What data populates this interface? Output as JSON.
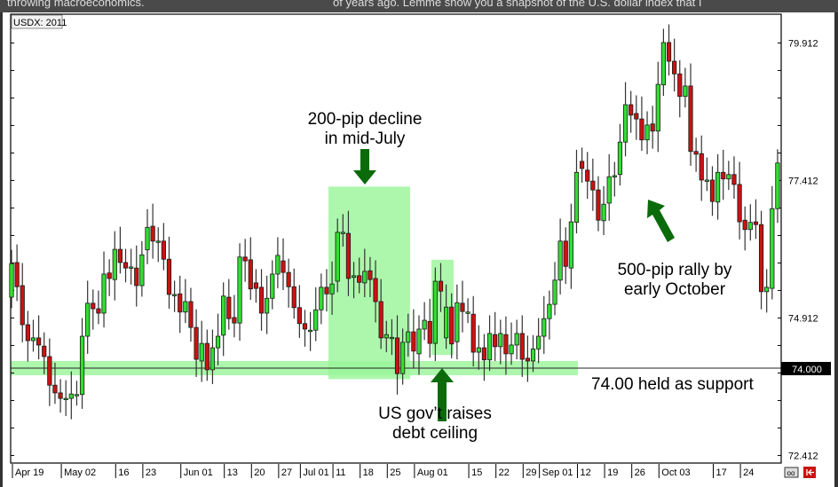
{
  "background_text": {
    "left": "throwing macroeconomics.",
    "right": "of years ago. Lemme show you a snapshot of the U.S. dollar index that I"
  },
  "chart_data": {
    "type": "candlestick",
    "title": "USDX: 2011",
    "symbol_label": "USDX: 2011",
    "y_ticks": [
      "79.912",
      "77.412",
      "74.912",
      "72.412"
    ],
    "y_tick_values": [
      79.912,
      77.412,
      74.912,
      72.412
    ],
    "ylim": [
      72.2,
      80.5
    ],
    "x_ticks": [
      "Apr 19",
      "May 02",
      "16",
      "23",
      "Jun 01",
      "13",
      "20",
      "27",
      "Jul 01",
      "11",
      "18",
      "25",
      "Aug 01",
      "15",
      "22",
      "29",
      "Sep 01",
      "12",
      "19",
      "26",
      "Oct 03",
      "17",
      "24"
    ],
    "x_tick_candle_index": [
      0,
      9,
      19,
      24,
      31,
      39,
      44,
      49,
      53,
      59,
      64,
      69,
      74,
      84,
      89,
      94,
      97,
      104,
      109,
      114,
      119,
      129,
      134
    ],
    "price_label": "74.000",
    "price_line": 74.0,
    "colors": {
      "up": "#33dd33",
      "down": "#cc1111",
      "highlight": "#99f599",
      "arrow": "#0b6b0b",
      "outline": "#1a1a1a"
    },
    "candles_open_close": [
      [
        75.29,
        75.9
      ],
      [
        75.92,
        75.48
      ],
      [
        75.5,
        74.79
      ],
      [
        74.79,
        74.5
      ],
      [
        74.5,
        74.55
      ],
      [
        74.55,
        74.42
      ],
      [
        74.4,
        74.21
      ],
      [
        74.21,
        73.69
      ],
      [
        73.69,
        73.55
      ],
      [
        73.55,
        73.45
      ],
      [
        73.45,
        73.45
      ],
      [
        73.45,
        73.53
      ],
      [
        73.52,
        73.52
      ],
      [
        73.52,
        74.58
      ],
      [
        74.58,
        75.18
      ],
      [
        75.18,
        75.08
      ],
      [
        75.08,
        75.0
      ],
      [
        75.0,
        75.71
      ],
      [
        75.73,
        75.63
      ],
      [
        75.61,
        76.16
      ],
      [
        76.16,
        75.92
      ],
      [
        75.92,
        75.82
      ],
      [
        75.84,
        75.84
      ],
      [
        75.82,
        75.5
      ],
      [
        75.5,
        76.06
      ],
      [
        76.15,
        76.56
      ],
      [
        76.58,
        76.31
      ],
      [
        76.31,
        76.31
      ],
      [
        76.31,
        75.98
      ],
      [
        75.98,
        75.34
      ],
      [
        75.34,
        75.34
      ],
      [
        75.35,
        75.02
      ],
      [
        75.02,
        75.21
      ],
      [
        75.21,
        74.74
      ],
      [
        74.74,
        74.16
      ],
      [
        74.13,
        74.45
      ],
      [
        74.45,
        73.97
      ],
      [
        73.97,
        74.37
      ],
      [
        74.37,
        74.58
      ],
      [
        74.6,
        75.31
      ],
      [
        75.29,
        74.9
      ],
      [
        74.92,
        74.82
      ],
      [
        74.82,
        76.02
      ],
      [
        76.02,
        75.95
      ],
      [
        75.97,
        75.44
      ],
      [
        75.55,
        75.45
      ],
      [
        75.47,
        75.0
      ],
      [
        75.0,
        75.27
      ],
      [
        75.27,
        75.71
      ],
      [
        75.71,
        76.05
      ],
      [
        75.95,
        75.74
      ],
      [
        75.74,
        75.48
      ],
      [
        75.48,
        75.1
      ],
      [
        75.1,
        74.81
      ],
      [
        74.81,
        74.71
      ],
      [
        74.69,
        74.69
      ],
      [
        74.69,
        75.06
      ],
      [
        75.06,
        75.47
      ],
      [
        75.47,
        75.35
      ],
      [
        75.35,
        75.53
      ],
      [
        75.58,
        76.47
      ],
      [
        76.47,
        76.47
      ],
      [
        76.45,
        75.63
      ],
      [
        75.65,
        75.68
      ],
      [
        75.68,
        75.56
      ],
      [
        75.55,
        75.76
      ],
      [
        75.77,
        75.61
      ],
      [
        75.63,
        75.21
      ],
      [
        75.21,
        74.55
      ],
      [
        74.55,
        74.61
      ],
      [
        74.56,
        74.56
      ],
      [
        74.55,
        73.9
      ],
      [
        73.9,
        74.47
      ],
      [
        74.47,
        74.66
      ],
      [
        74.66,
        74.31
      ],
      [
        74.26,
        74.71
      ],
      [
        74.71,
        74.87
      ],
      [
        74.85,
        74.45
      ],
      [
        74.45,
        75.58
      ],
      [
        75.58,
        75.4
      ],
      [
        74.55,
        75.11
      ],
      [
        75.11,
        74.44
      ],
      [
        74.48,
        75.19
      ],
      [
        75.18,
        75.03
      ],
      [
        75.02,
        75.02
      ],
      [
        74.98,
        74.29
      ],
      [
        74.29,
        74.37
      ],
      [
        74.37,
        74.15
      ],
      [
        74.15,
        74.63
      ],
      [
        74.61,
        74.39
      ],
      [
        74.39,
        74.63
      ],
      [
        74.61,
        74.26
      ],
      [
        74.26,
        74.42
      ],
      [
        74.42,
        74.63
      ],
      [
        74.63,
        74.16
      ],
      [
        74.18,
        74.13
      ],
      [
        74.13,
        74.35
      ],
      [
        74.35,
        74.58
      ],
      [
        74.58,
        74.9
      ],
      [
        74.9,
        75.16
      ],
      [
        75.16,
        75.6
      ],
      [
        75.6,
        76.31
      ],
      [
        76.31,
        75.85
      ],
      [
        75.82,
        76.66
      ],
      [
        76.65,
        77.56
      ],
      [
        77.76,
        77.63
      ],
      [
        77.6,
        77.4
      ],
      [
        77.4,
        77.24
      ],
      [
        77.24,
        76.69
      ],
      [
        76.68,
        76.98
      ],
      [
        77.0,
        77.48
      ],
      [
        77.5,
        77.5
      ],
      [
        77.52,
        78.11
      ],
      [
        78.11,
        78.79
      ],
      [
        78.79,
        78.6
      ],
      [
        78.63,
        78.53
      ],
      [
        78.53,
        78.15
      ],
      [
        78.15,
        78.42
      ],
      [
        78.44,
        78.31
      ],
      [
        78.31,
        79.16
      ],
      [
        79.15,
        79.92
      ],
      [
        79.92,
        79.58
      ],
      [
        79.58,
        79.35
      ],
      [
        79.35,
        78.94
      ],
      [
        78.94,
        79.13
      ],
      [
        79.13,
        77.94
      ],
      [
        77.94,
        77.89
      ],
      [
        77.9,
        77.42
      ],
      [
        77.42,
        77.42
      ],
      [
        77.42,
        77.03
      ],
      [
        77.02,
        77.56
      ],
      [
        77.56,
        77.44
      ],
      [
        77.44,
        77.52
      ],
      [
        77.52,
        77.34
      ],
      [
        77.34,
        76.66
      ],
      [
        76.69,
        76.52
      ],
      [
        76.52,
        76.65
      ],
      [
        76.66,
        76.61
      ],
      [
        76.61,
        75.39
      ],
      [
        75.39,
        75.47
      ],
      [
        75.45,
        76.9
      ],
      [
        76.9,
        77.73
      ]
    ],
    "annotations": {
      "decline": [
        "200-pip decline",
        "in mid-July"
      ],
      "debt": [
        "US gov’t raises",
        "debt ceiling"
      ],
      "rally": [
        "500-pip rally by",
        "early October"
      ],
      "support": "74.00 held as support"
    },
    "decline_zone_price": [
      73.8,
      77.3
    ],
    "debt_zone_price": [
      74.24,
      75.97
    ],
    "support_band_price": [
      73.87,
      74.13
    ]
  },
  "toolbar_icons": [
    "link-icon",
    "jump-to-end-icon"
  ]
}
